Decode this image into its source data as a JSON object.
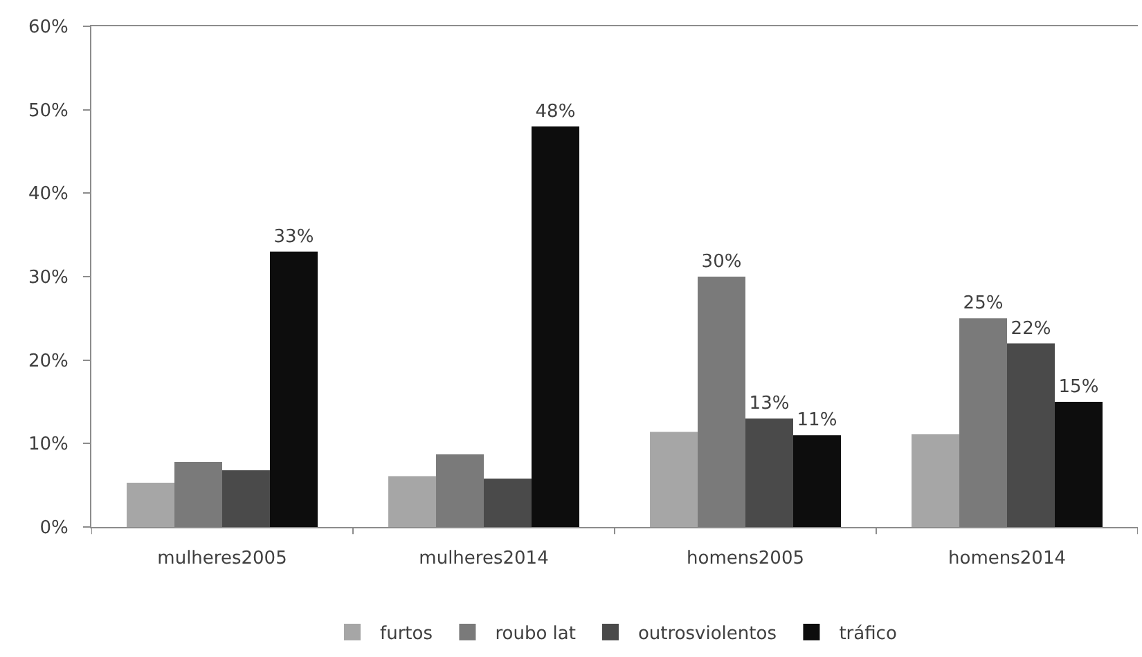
{
  "chart_data": {
    "type": "bar",
    "categories": [
      "mulheres2005",
      "mulheres2014",
      "homens2005",
      "homens2014"
    ],
    "series": [
      {
        "name": "furtos",
        "color": "#a6a6a6",
        "values": [
          5.3,
          6.1,
          11.4,
          11.1
        ]
      },
      {
        "name": "roubo lat",
        "color": "#7a7a7a",
        "values": [
          7.8,
          8.7,
          30,
          25
        ],
        "value_labels": [
          null,
          null,
          "30%",
          "25%"
        ]
      },
      {
        "name": "outrosviolentos",
        "color": "#4a4a4a",
        "values": [
          6.8,
          5.8,
          13,
          22
        ],
        "value_labels": [
          null,
          null,
          "13%",
          "22%"
        ]
      },
      {
        "name": "tráfico",
        "color": "#0d0d0d",
        "values": [
          33,
          48,
          11,
          15
        ],
        "value_labels": [
          "33%",
          "48%",
          "11%",
          "15%"
        ]
      }
    ],
    "ylim": [
      0,
      60
    ],
    "yticks": [
      {
        "value": 0,
        "label": "0%"
      },
      {
        "value": 10,
        "label": "10%"
      },
      {
        "value": 20,
        "label": "20%"
      },
      {
        "value": 30,
        "label": "30%"
      },
      {
        "value": 40,
        "label": "40%"
      },
      {
        "value": 50,
        "label": "50%"
      },
      {
        "value": 60,
        "label": "60%"
      }
    ],
    "grid": false,
    "legend": "bottom"
  }
}
